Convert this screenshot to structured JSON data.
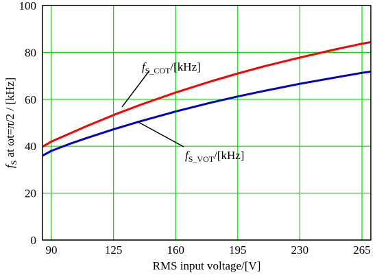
{
  "chart_data": {
    "type": "line",
    "xlabel": "RMS input voltage/[V]",
    "ylabel": {
      "f": "f",
      "f_sub": "S",
      "mid": " at ωt=",
      "pi": "π",
      "tail": "/2   / [kHz]"
    },
    "xlim": [
      85,
      270
    ],
    "ylim": [
      0,
      100
    ],
    "x_ticks": [
      90,
      125,
      160,
      195,
      230,
      265
    ],
    "y_ticks": [
      0,
      20,
      40,
      60,
      80,
      100
    ],
    "grid": true,
    "series": [
      {
        "name": "fS_COT/[kHz]",
        "color": "#ff0000",
        "x": [
          85,
          90,
          100,
          110,
          125,
          140,
          160,
          180,
          195,
          210,
          230,
          250,
          265,
          270
        ],
        "y": [
          39.8,
          42,
          45.3,
          48.6,
          53.3,
          57.6,
          62.9,
          67.7,
          71.0,
          74.1,
          77.8,
          81.3,
          83.7,
          84.4
        ]
      },
      {
        "name": "fS_VOT/[kHz]",
        "color": "#0000cc",
        "x": [
          85,
          90,
          100,
          110,
          125,
          140,
          160,
          180,
          195,
          210,
          230,
          250,
          265,
          270
        ],
        "y": [
          36.0,
          38,
          40.9,
          43.5,
          47.2,
          50.6,
          54.8,
          58.6,
          61.2,
          63.6,
          66.6,
          69.3,
          71.3,
          71.8
        ]
      }
    ],
    "annotations": [
      {
        "label": "f",
        "sub": "S_COT",
        "tail": "/[kHz]",
        "x": 147,
        "y": 79.5,
        "color": "#ff0000"
      },
      {
        "label": "f",
        "sub": "S_VOT",
        "tail": "/[kHz]",
        "x": 196,
        "y": 35.5,
        "color": "#0000cc"
      }
    ],
    "colors": {
      "grid": "#00dd00",
      "frame": "#000000"
    }
  }
}
